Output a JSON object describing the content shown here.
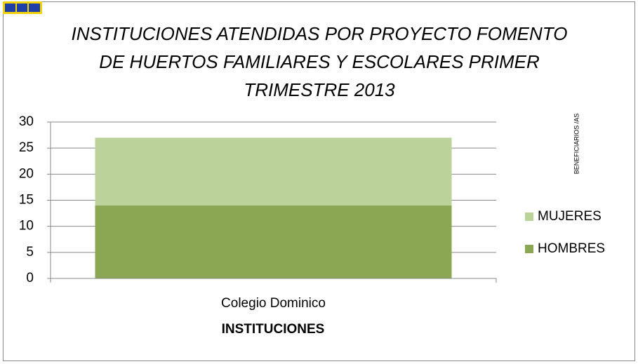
{
  "chart_data": {
    "type": "stacked_bar",
    "title": "INSTITUCIONES ATENDIDAS POR PROYECTO FOMENTO DE HUERTOS FAMILIARES Y ESCOLARES PRIMER TRIMESTRE 2013",
    "x_label": "INSTITUCIONES",
    "y_label": "BENEFICIARIOS /AS",
    "categories": [
      "Colegio Dominico"
    ],
    "series": [
      {
        "name": "HOMBRES",
        "color": "#8ba753",
        "values": [
          14
        ]
      },
      {
        "name": "MUJERES",
        "color": "#bcd29b",
        "values": [
          13
        ]
      }
    ],
    "ylim": [
      0,
      30
    ],
    "yticks": [
      0,
      5,
      10,
      15,
      20,
      25,
      30
    ],
    "grid": true,
    "legend": "right"
  }
}
